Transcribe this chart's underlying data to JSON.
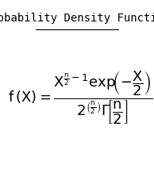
{
  "title": "Probability Density Function",
  "bg_color": "#ffffff",
  "text_color": "#000000",
  "title_fontsize": 10,
  "formula_fontsize": 13,
  "fig_width": 1.94,
  "fig_height": 2.13,
  "dpi": 100
}
